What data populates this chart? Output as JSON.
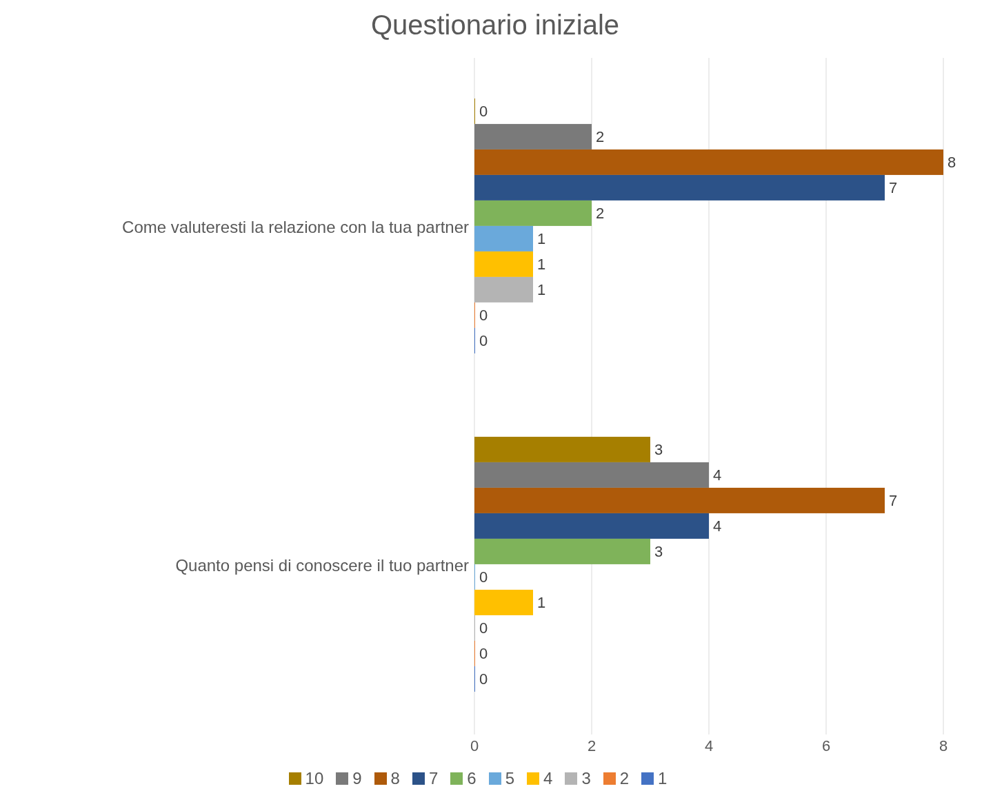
{
  "chart_data": {
    "type": "bar",
    "orientation": "horizontal",
    "title": "Questionario iniziale",
    "categories": [
      "Come valuteresti la relazione con la tua partner",
      "Quanto pensi di conoscere il tuo partner"
    ],
    "series": [
      {
        "name": "10",
        "color": "#a67f00",
        "values": [
          0,
          3
        ]
      },
      {
        "name": "9",
        "color": "#7a7a7a",
        "values": [
          2,
          4
        ]
      },
      {
        "name": "8",
        "color": "#ae5a0a",
        "values": [
          8,
          7
        ]
      },
      {
        "name": "7",
        "color": "#2c5288",
        "values": [
          7,
          4
        ]
      },
      {
        "name": "6",
        "color": "#7fb35a",
        "values": [
          2,
          3
        ]
      },
      {
        "name": "5",
        "color": "#6aa9db",
        "values": [
          1,
          0
        ]
      },
      {
        "name": "4",
        "color": "#ffc000",
        "values": [
          1,
          1
        ]
      },
      {
        "name": "3",
        "color": "#b4b4b4",
        "values": [
          1,
          0
        ]
      },
      {
        "name": "2",
        "color": "#ed7d31",
        "values": [
          0,
          0
        ]
      },
      {
        "name": "1",
        "color": "#4472c4",
        "values": [
          0,
          0
        ]
      }
    ],
    "xlim": [
      0,
      8
    ],
    "xticks": [
      0,
      2,
      4,
      6,
      8
    ],
    "grid": "x",
    "legend": "bottom",
    "data_labels": true
  }
}
